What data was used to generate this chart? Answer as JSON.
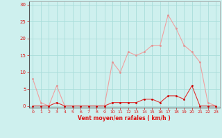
{
  "hours": [
    0,
    1,
    2,
    3,
    4,
    5,
    6,
    7,
    8,
    9,
    10,
    11,
    12,
    13,
    14,
    15,
    16,
    17,
    18,
    19,
    20,
    21,
    22,
    23
  ],
  "wind_mean": [
    0,
    0,
    0,
    1,
    0,
    0,
    0,
    0,
    0,
    0,
    1,
    1,
    1,
    1,
    2,
    2,
    1,
    3,
    3,
    2,
    6,
    0,
    0,
    0
  ],
  "wind_gust": [
    8,
    1,
    0,
    6,
    0,
    0,
    0,
    0,
    0,
    0,
    13,
    10,
    16,
    15,
    16,
    18,
    18,
    27,
    23,
    18,
    16,
    13,
    1,
    0
  ],
  "line_color_mean": "#e03030",
  "line_color_gust": "#f0a0a0",
  "marker_color_mean": "#cc0000",
  "marker_color_gust": "#e09090",
  "bg_color": "#cef0ee",
  "grid_color": "#aaddda",
  "tick_color": "#dd1111",
  "xlabel": "Vent moyen/en rafales ( km/h )",
  "ylabel_ticks": [
    0,
    5,
    10,
    15,
    20,
    25,
    30
  ],
  "ylim": [
    -0.5,
    31
  ],
  "xlim": [
    -0.5,
    23.5
  ]
}
